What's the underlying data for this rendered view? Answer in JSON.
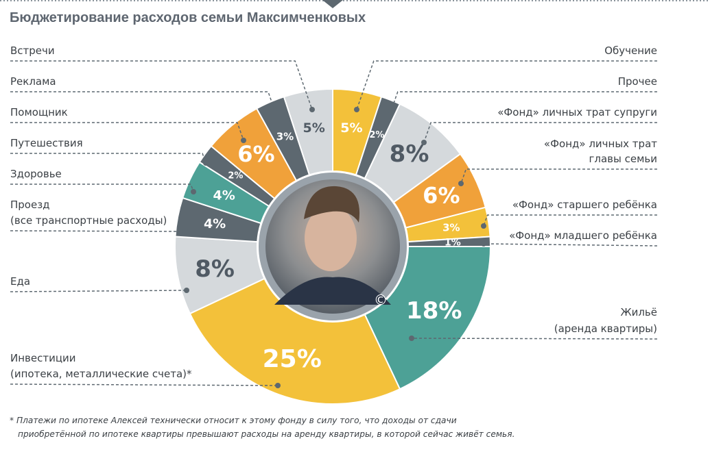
{
  "title": "Бюджетирование расходов семьи Максимченковых",
  "footnote": {
    "line1": "* Платежи по ипотеке Алексей технически относит к этому фонду в силу того, что доходы от сдачи",
    "line2": "приобретённой по ипотеке квартиры превышают расходы на аренду квартиры, в которой сейчас живёт семья."
  },
  "photo": {
    "copyright_mark": "©"
  },
  "colors": {
    "yellow": "#f3c13a",
    "orange": "#f0a13a",
    "teal": "#4da196",
    "dark_gray": "#5d6870",
    "light_gray": "#d5d9dc",
    "leader": "#5d6870"
  },
  "chart_data": {
    "type": "pie",
    "variant": "donut",
    "unit": "%",
    "slices": [
      {
        "key": "education",
        "value": 5,
        "value_label": "5%",
        "label_lines": [
          "Обучение"
        ],
        "color": "yellow"
      },
      {
        "key": "other",
        "value": 2,
        "value_label": "2%",
        "label_lines": [
          "Прочее"
        ],
        "color": "dark_gray"
      },
      {
        "key": "spouse",
        "value": 8,
        "value_label": "8%",
        "label_lines": [
          "«Фонд» личных трат супруги"
        ],
        "color": "light_gray"
      },
      {
        "key": "head",
        "value": 6,
        "value_label": "6%",
        "label_lines": [
          "«Фонд» личных трат",
          "главы семьи"
        ],
        "color": "orange"
      },
      {
        "key": "elder",
        "value": 3,
        "value_label": "3%",
        "label_lines": [
          "«Фонд» старшего ребёнка"
        ],
        "color": "yellow"
      },
      {
        "key": "younger",
        "value": 1,
        "value_label": "1%",
        "label_lines": [
          "«Фонд» младшего ребёнка"
        ],
        "color": "dark_gray"
      },
      {
        "key": "housing",
        "value": 18,
        "value_label": "18%",
        "label_lines": [
          "Жильё",
          "(аренда квартиры)"
        ],
        "color": "teal"
      },
      {
        "key": "invest",
        "value": 25,
        "value_label": "25%",
        "label_lines": [
          "Инвестиции",
          "(ипотека, металлические счета)*"
        ],
        "color": "yellow"
      },
      {
        "key": "food",
        "value": 8,
        "value_label": "8%",
        "label_lines": [
          "Еда"
        ],
        "color": "light_gray"
      },
      {
        "key": "transport",
        "value": 4,
        "value_label": "4%",
        "label_lines": [
          "Проезд",
          "(все транспортные расходы)"
        ],
        "color": "dark_gray"
      },
      {
        "key": "health",
        "value": 4,
        "value_label": "4%",
        "label_lines": [
          "Здоровье"
        ],
        "color": "teal"
      },
      {
        "key": "travel",
        "value": 2,
        "value_label": "2%",
        "label_lines": [
          "Путешествия"
        ],
        "color": "dark_gray"
      },
      {
        "key": "assistant",
        "value": 6,
        "value_label": "6%",
        "label_lines": [
          "Помощник"
        ],
        "color": "orange"
      },
      {
        "key": "ads",
        "value": 3,
        "value_label": "3%",
        "label_lines": [
          "Реклама"
        ],
        "color": "dark_gray"
      },
      {
        "key": "meetings",
        "value": 5,
        "value_label": "5%",
        "label_lines": [
          "Встречи"
        ],
        "color": "light_gray"
      }
    ]
  }
}
